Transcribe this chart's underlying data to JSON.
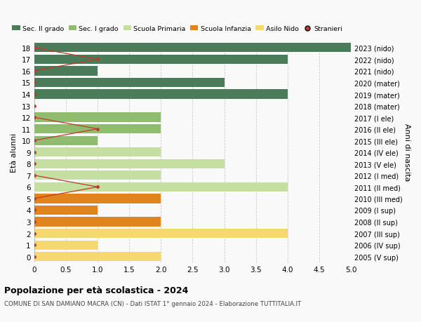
{
  "ages": [
    18,
    17,
    16,
    15,
    14,
    13,
    12,
    11,
    10,
    9,
    8,
    7,
    6,
    5,
    4,
    3,
    2,
    1,
    0
  ],
  "right_labels": [
    "2005 (V sup)",
    "2006 (IV sup)",
    "2007 (III sup)",
    "2008 (II sup)",
    "2009 (I sup)",
    "2010 (III med)",
    "2011 (II med)",
    "2012 (I med)",
    "2013 (V ele)",
    "2014 (IV ele)",
    "2015 (III ele)",
    "2016 (II ele)",
    "2017 (I ele)",
    "2018 (mater)",
    "2019 (mater)",
    "2020 (mater)",
    "2021 (nido)",
    "2022 (nido)",
    "2023 (nido)"
  ],
  "bar_values": [
    5.0,
    4.0,
    1.0,
    3.0,
    4.0,
    0.0,
    2.0,
    2.0,
    1.0,
    2.0,
    3.0,
    2.0,
    4.0,
    2.0,
    1.0,
    2.0,
    4.0,
    1.0,
    2.0
  ],
  "stranieri_x": [
    0,
    1,
    0,
    0,
    0,
    0,
    0,
    1,
    0,
    0,
    0,
    0,
    1,
    0,
    0,
    0,
    0,
    0,
    0
  ],
  "stranieri_color": "#c0392b",
  "color_map": {
    "18": "#4a7c59",
    "17": "#4a7c59",
    "16": "#4a7c59",
    "15": "#4a7c59",
    "14": "#4a7c59",
    "13": "#4a7c59",
    "12": "#8fbc6f",
    "11": "#8fbc6f",
    "10": "#8fbc6f",
    "9": "#c5dfa0",
    "8": "#c5dfa0",
    "7": "#c5dfa0",
    "6": "#c5dfa0",
    "5": "#e0841e",
    "4": "#e0841e",
    "3": "#e0841e",
    "2": "#f5d970",
    "1": "#f5d970",
    "0": "#f5d970"
  },
  "legend_labels": [
    "Sec. II grado",
    "Sec. I grado",
    "Scuola Primaria",
    "Scuola Infanzia",
    "Asilo Nido",
    "Stranieri"
  ],
  "legend_colors": [
    "#4a7c59",
    "#8fbc6f",
    "#c5dfa0",
    "#e0841e",
    "#f5d970",
    "#c0392b"
  ],
  "ylabel_left": "Età alunni",
  "ylabel_right": "Anni di nascita",
  "xlim": [
    0,
    5.0
  ],
  "xticks": [
    0.0,
    0.5,
    1.0,
    1.5,
    2.0,
    2.5,
    3.0,
    3.5,
    4.0,
    4.5,
    5.0
  ],
  "xtick_labels": [
    "0",
    "0.5",
    "1.0",
    "1.5",
    "2.0",
    "2.5",
    "3.0",
    "3.5",
    "4.0",
    "4.5",
    "5.0"
  ],
  "title": "Popolazione per età scolastica - 2024",
  "subtitle": "COMUNE DI SAN DAMIANO MACRA (CN) - Dati ISTAT 1° gennaio 2024 - Elaborazione TUTTITALIA.IT",
  "bg_color": "#f9f9f9",
  "bar_height": 0.8
}
